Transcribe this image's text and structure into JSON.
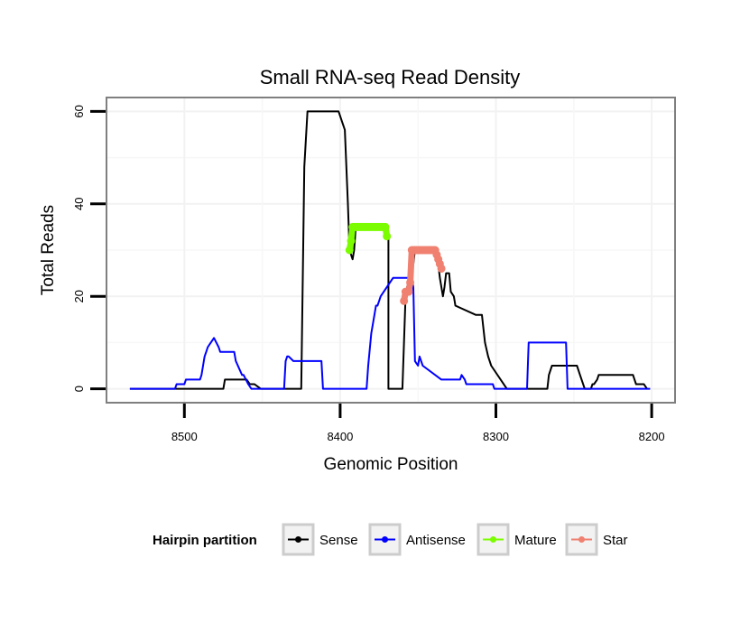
{
  "chart_data": {
    "type": "line",
    "title": "Small RNA-seq Read Density",
    "xlabel": "Genomic Position",
    "ylabel": "Total Reads",
    "xlim": [
      8550,
      8185
    ],
    "x_reversed": true,
    "ylim": [
      -3,
      63
    ],
    "x_ticks": [
      8500,
      8400,
      8300,
      8200
    ],
    "x_tick_labels": [
      "8500",
      "8400",
      "8300",
      "8200"
    ],
    "y_ticks": [
      0,
      20,
      40,
      60
    ],
    "y_tick_labels": [
      "0",
      "20",
      "40",
      "60"
    ],
    "grid": true,
    "legend": {
      "title": "Hairpin partition",
      "position": "bottom",
      "entries": [
        {
          "name": "Sense",
          "color": "#000000"
        },
        {
          "name": "Antisense",
          "color": "#0000ff"
        },
        {
          "name": "Mature",
          "color": "#7cfc00"
        },
        {
          "name": "Star",
          "color": "#f08070"
        }
      ]
    },
    "series": [
      {
        "name": "Sense",
        "color": "#000000",
        "mode": "line",
        "x": [
          8535,
          8475,
          8474,
          8460,
          8458,
          8455,
          8451,
          8425,
          8423,
          8421,
          8420,
          8401,
          8399,
          8397,
          8395,
          8394,
          8393,
          8392,
          8391,
          8390,
          8371,
          8369,
          8369,
          8360,
          8358,
          8357,
          8355,
          8353,
          8352,
          8346,
          8340,
          8338,
          8337,
          8336,
          8335,
          8334,
          8333,
          8332,
          8330,
          8329,
          8327,
          8326,
          8313,
          8312,
          8309,
          8308,
          8307,
          8305,
          8303,
          8293,
          8292,
          8290,
          8267,
          8266,
          8264,
          8256,
          8254,
          8248,
          8246,
          8243,
          8239,
          8238,
          8237,
          8235,
          8234,
          8213,
          8212,
          8210,
          8205,
          8203
        ],
        "y": [
          0,
          0,
          2,
          2,
          1,
          1,
          0,
          0,
          48,
          60,
          60,
          60,
          58,
          56,
          40,
          30,
          29,
          28,
          30,
          35,
          35,
          33,
          0,
          0,
          20,
          22,
          24,
          27,
          30,
          30,
          30,
          29,
          27,
          24,
          22,
          20,
          22,
          25,
          25,
          21,
          20,
          18,
          16,
          16,
          16,
          13,
          10,
          7,
          5,
          0,
          0,
          0,
          0,
          3,
          5,
          5,
          5,
          5,
          3,
          0,
          0,
          1,
          1,
          2,
          3,
          3,
          3,
          1,
          1,
          0
        ]
      },
      {
        "name": "Antisense",
        "color": "#0000ff",
        "mode": "line",
        "x": [
          8535,
          8506,
          8505,
          8500,
          8499,
          8490,
          8489,
          8488,
          8487,
          8486,
          8485,
          8483,
          8481,
          8478,
          8477,
          8476,
          8475,
          8475,
          8468,
          8467,
          8463,
          8462,
          8459,
          8457,
          8436,
          8435,
          8434,
          8433,
          8430,
          8429,
          8412,
          8411,
          8409,
          8408,
          8406,
          8402,
          8400,
          8392,
          8391,
          8390,
          8388,
          8386,
          8383,
          8382,
          8380,
          8378,
          8377,
          8376,
          8375,
          8374,
          8374,
          8366,
          8365,
          8365,
          8355,
          8354,
          8353,
          8352,
          8350,
          8349,
          8347,
          8335,
          8334,
          8323,
          8322,
          8320,
          8319,
          8316,
          8315,
          8302,
          8301,
          8300,
          8293,
          8291,
          8280,
          8279,
          8277,
          8255,
          8254,
          8201
        ],
        "y": [
          0,
          0,
          1,
          1,
          2,
          2,
          3,
          5,
          7,
          8,
          9,
          10,
          11,
          9,
          8,
          8,
          8,
          8,
          8,
          6,
          3,
          3,
          1,
          0,
          0,
          6,
          7,
          7,
          6,
          6,
          6,
          0,
          0,
          0,
          0,
          0,
          0,
          0,
          0,
          0,
          0,
          0,
          0,
          5,
          12,
          16,
          18,
          18,
          19,
          20,
          20,
          24,
          24,
          24,
          24,
          24,
          22,
          6,
          5,
          7,
          5,
          2,
          2,
          2,
          3,
          2,
          1,
          1,
          1,
          1,
          0,
          0,
          0,
          0,
          0,
          10,
          10,
          10,
          0,
          0
        ]
      },
      {
        "name": "Mature",
        "color": "#7cfc00",
        "mode": "segment",
        "x": [
          8394,
          8393,
          8392,
          8391,
          8390,
          8389,
          8388,
          8387,
          8386,
          8385,
          8384,
          8383,
          8382,
          8381,
          8380,
          8379,
          8378,
          8377,
          8376,
          8375,
          8374,
          8373,
          8372,
          8371,
          8370
        ],
        "y": [
          30,
          32,
          35,
          35,
          35,
          35,
          35,
          35,
          35,
          35,
          35,
          35,
          35,
          35,
          35,
          35,
          35,
          35,
          35,
          35,
          35,
          35,
          35,
          35,
          33
        ]
      },
      {
        "name": "Star",
        "color": "#f08070",
        "mode": "segment",
        "x": [
          8359,
          8358,
          8357,
          8356,
          8355,
          8354,
          8353,
          8352,
          8351,
          8350,
          8349,
          8348,
          8347,
          8346,
          8345,
          8344,
          8343,
          8342,
          8341,
          8340,
          8339,
          8338,
          8337,
          8336,
          8335
        ],
        "y": [
          19,
          21,
          21,
          21,
          23,
          30,
          30,
          30,
          30,
          30,
          30,
          30,
          30,
          30,
          30,
          30,
          30,
          30,
          30,
          30,
          30,
          29,
          28,
          27,
          26
        ]
      }
    ]
  }
}
